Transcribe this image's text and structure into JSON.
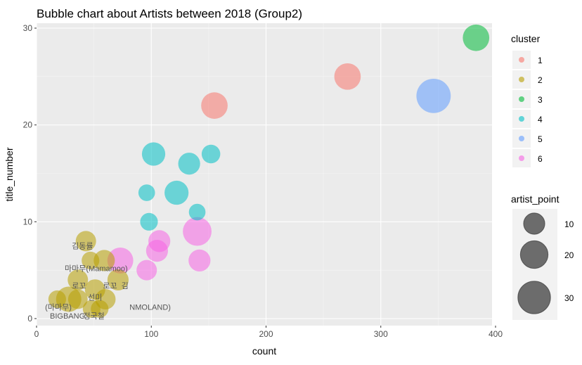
{
  "chart_data": {
    "type": "scatter",
    "title": "Bubble chart about Artists between 2018 (Group2)",
    "xlabel": "count",
    "ylabel": "title_number",
    "xlim": [
      0,
      400
    ],
    "ylim": [
      0,
      30
    ],
    "x_ticks": [
      "0",
      "100",
      "200",
      "300",
      "400"
    ],
    "y_ticks": [
      "0",
      "10",
      "20",
      "30"
    ],
    "grid": true,
    "legend_placement": "right",
    "cluster_legend": {
      "title": "cluster",
      "entries": [
        {
          "label": "1",
          "color": "#F8766D"
        },
        {
          "label": "2",
          "color": "#B79F00"
        },
        {
          "label": "3",
          "color": "#00BA38"
        },
        {
          "label": "4",
          "color": "#00BFC4"
        },
        {
          "label": "5",
          "color": "#619CFF"
        },
        {
          "label": "6",
          "color": "#F564E3"
        }
      ]
    },
    "size_legend": {
      "title": "artist_point",
      "entries": [
        {
          "label": "10",
          "value": 10
        },
        {
          "label": "20",
          "value": 20
        },
        {
          "label": "30",
          "value": 30
        }
      ]
    },
    "points": [
      {
        "x": 383,
        "y": 29,
        "size": 18,
        "cluster": "3"
      },
      {
        "x": 346,
        "y": 23,
        "size": 34,
        "cluster": "5"
      },
      {
        "x": 271,
        "y": 25,
        "size": 18,
        "cluster": "1"
      },
      {
        "x": 155,
        "y": 22,
        "size": 18,
        "cluster": "1"
      },
      {
        "x": 102,
        "y": 17,
        "size": 13,
        "cluster": "4"
      },
      {
        "x": 152,
        "y": 17,
        "size": 7,
        "cluster": "4"
      },
      {
        "x": 133,
        "y": 16,
        "size": 11,
        "cluster": "4"
      },
      {
        "x": 96,
        "y": 13,
        "size": 5,
        "cluster": "4"
      },
      {
        "x": 122,
        "y": 13,
        "size": 14,
        "cluster": "4"
      },
      {
        "x": 140,
        "y": 11,
        "size": 5,
        "cluster": "4"
      },
      {
        "x": 98,
        "y": 10,
        "size": 6,
        "cluster": "4"
      },
      {
        "x": 140,
        "y": 9,
        "size": 22,
        "cluster": "6"
      },
      {
        "x": 107,
        "y": 8,
        "size": 11,
        "cluster": "6"
      },
      {
        "x": 105,
        "y": 7,
        "size": 11,
        "cluster": "6"
      },
      {
        "x": 142,
        "y": 6,
        "size": 11,
        "cluster": "6"
      },
      {
        "x": 73,
        "y": 6,
        "size": 17,
        "cluster": "6"
      },
      {
        "x": 96,
        "y": 5,
        "size": 9,
        "cluster": "6"
      },
      {
        "x": 43,
        "y": 8,
        "size": 9,
        "cluster": "2"
      },
      {
        "x": 59,
        "y": 6,
        "size": 10,
        "cluster": "2"
      },
      {
        "x": 47,
        "y": 6,
        "size": 6,
        "cluster": "2"
      },
      {
        "x": 36,
        "y": 4,
        "size": 9,
        "cluster": "2"
      },
      {
        "x": 71,
        "y": 4,
        "size": 10,
        "cluster": "2"
      },
      {
        "x": 51,
        "y": 3,
        "size": 9,
        "cluster": "2"
      },
      {
        "x": 60,
        "y": 2,
        "size": 9,
        "cluster": "2"
      },
      {
        "x": 28,
        "y": 2,
        "size": 16,
        "cluster": "2"
      },
      {
        "x": 18,
        "y": 2,
        "size": 6,
        "cluster": "2"
      },
      {
        "x": 36,
        "y": 2,
        "size": 8,
        "cluster": "2"
      },
      {
        "x": 48,
        "y": 1,
        "size": 6,
        "cluster": "2"
      },
      {
        "x": 55,
        "y": 1,
        "size": 6,
        "cluster": "2"
      }
    ],
    "annotations": [
      {
        "text": "김동률",
        "x": 40,
        "y": 7.5
      },
      {
        "text": "마마무(Mamamoo)",
        "x": 52,
        "y": 5.2
      },
      {
        "text": "로꼬",
        "x": 37,
        "y": 3.4
      },
      {
        "text": "로꼬",
        "x": 64,
        "y": 3.4
      },
      {
        "text": "김",
        "x": 77,
        "y": 3.4
      },
      {
        "text": "선미",
        "x": 51,
        "y": 2.2
      },
      {
        "text": "(마마무)",
        "x": 19,
        "y": 1.2
      },
      {
        "text": "NMOLAND)",
        "x": 99,
        "y": 1.2
      },
      {
        "text": "BIGBANG",
        "x": 27,
        "y": 0.3
      },
      {
        "text": "정국철",
        "x": 50,
        "y": 0.3
      }
    ]
  }
}
